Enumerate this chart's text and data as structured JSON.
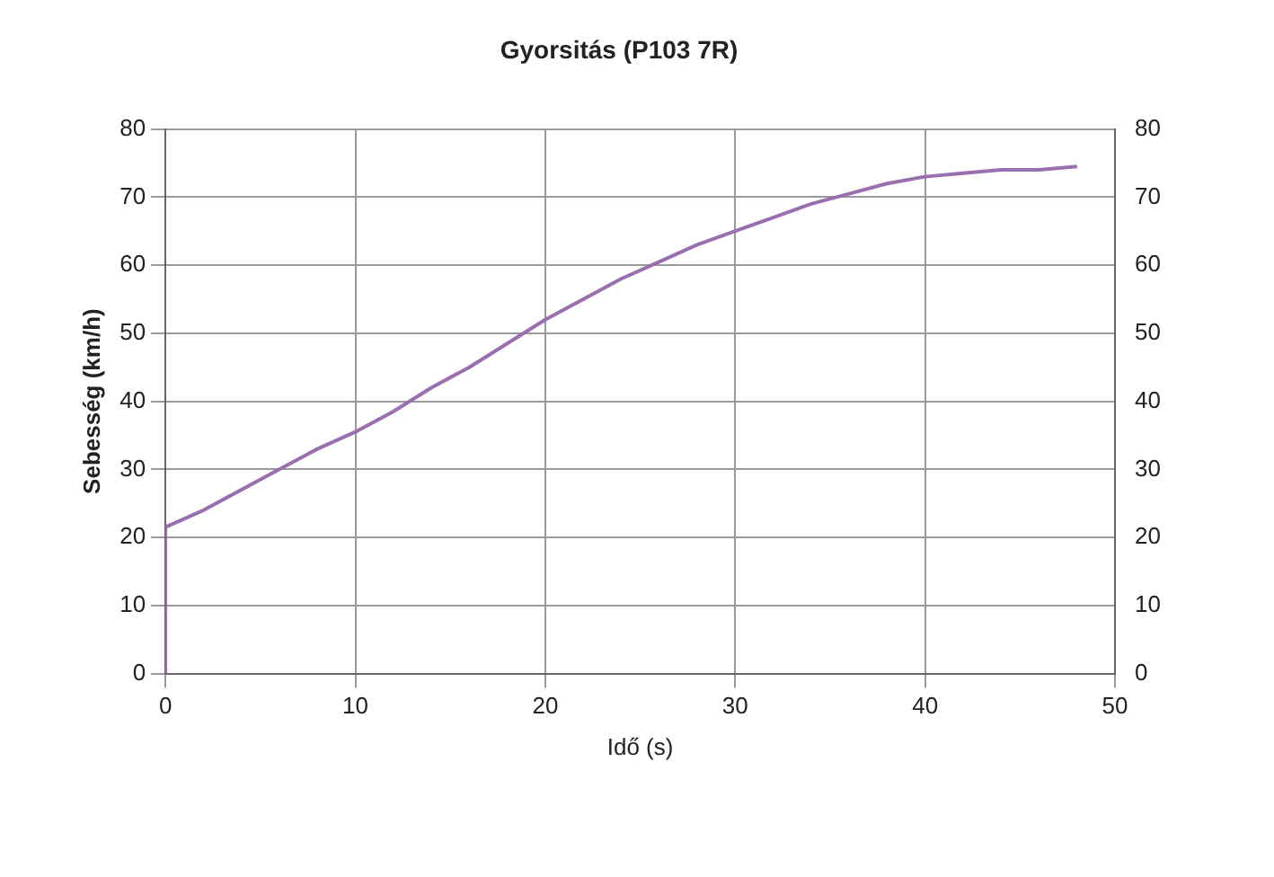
{
  "chart_data": {
    "type": "line",
    "title": "Gyorsitás (P103 7R)",
    "xlabel": "Idő (s)",
    "ylabel": "Sebesség (km/h)",
    "xlim": [
      0,
      50
    ],
    "xticks": [
      0,
      10,
      20,
      30,
      40,
      50
    ],
    "ylim": [
      0,
      80
    ],
    "yticks": [
      0,
      10,
      20,
      30,
      40,
      50,
      60,
      70,
      80
    ],
    "y2lim": [
      0,
      80
    ],
    "y2ticks": [
      0,
      10,
      20,
      30,
      40,
      50,
      60,
      70,
      80
    ],
    "grid": true,
    "legend": false,
    "marker": "none",
    "line_style": "solid",
    "series": [
      {
        "color": "#9a6fb0",
        "x": [
          0,
          0,
          2,
          4,
          6,
          8,
          10,
          12,
          14,
          16,
          18,
          20,
          22,
          24,
          26,
          28,
          30,
          32,
          34,
          36,
          38,
          40,
          42,
          44,
          46,
          48
        ],
        "values": [
          0,
          21.5,
          24,
          27,
          30,
          33,
          35.5,
          38.5,
          42,
          45,
          48.5,
          52,
          55,
          58,
          60.5,
          63,
          65,
          67,
          69,
          70.5,
          72,
          73,
          73.5,
          74,
          74,
          74.5
        ]
      }
    ]
  }
}
